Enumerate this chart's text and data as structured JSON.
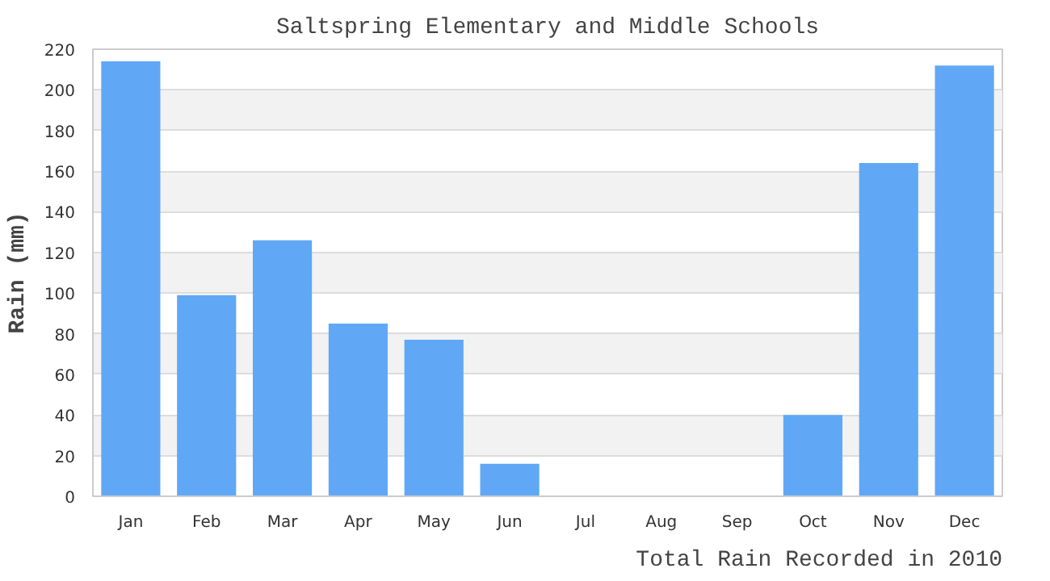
{
  "chart_data": {
    "type": "bar",
    "title": "Saltspring Elementary and Middle Schools",
    "xlabel": "Total Rain Recorded in 2010",
    "ylabel": "Rain (mm)",
    "categories": [
      "Jan",
      "Feb",
      "Mar",
      "Apr",
      "May",
      "Jun",
      "Jul",
      "Aug",
      "Sep",
      "Oct",
      "Nov",
      "Dec"
    ],
    "values": [
      214,
      99,
      126,
      85,
      77,
      16,
      0,
      0,
      0,
      40,
      164,
      212
    ],
    "color": "#60a8f5",
    "ylim": [
      0,
      220
    ],
    "yticks": [
      0,
      20,
      40,
      60,
      80,
      100,
      120,
      140,
      160,
      180,
      200,
      220
    ],
    "grid": "y"
  }
}
